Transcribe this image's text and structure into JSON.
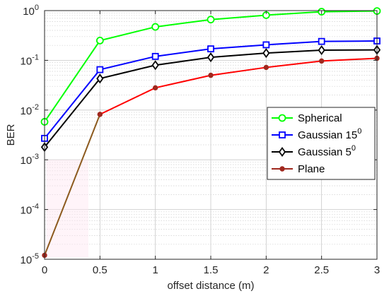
{
  "chart_data": {
    "type": "line",
    "xlabel": "offset distance (m)",
    "ylabel": "BER",
    "x": [
      0,
      0.5,
      1,
      1.5,
      2,
      2.5,
      3
    ],
    "xlim": [
      0,
      3
    ],
    "ylim": [
      1e-05,
      1
    ],
    "yscale": "log",
    "grid": true,
    "legend_position": "right",
    "x_ticks": [
      "0",
      "0.5",
      "1",
      "1.5",
      "2",
      "2.5",
      "3"
    ],
    "y_ticks": [
      {
        "base": "10",
        "exp": "-5",
        "value": 1e-05
      },
      {
        "base": "10",
        "exp": "-4",
        "value": 0.0001
      },
      {
        "base": "10",
        "exp": "-3",
        "value": 0.001
      },
      {
        "base": "10",
        "exp": "-2",
        "value": 0.01
      },
      {
        "base": "10",
        "exp": "-1",
        "value": 0.1
      },
      {
        "base": "10",
        "exp": "0",
        "value": 1
      }
    ],
    "series": [
      {
        "name": "Spherical",
        "name_sup": "",
        "color": "#00ff00",
        "marker": "circle",
        "values": [
          0.0058,
          0.25,
          0.47,
          0.66,
          0.81,
          0.95,
          0.98
        ]
      },
      {
        "name": "Gaussian 15",
        "name_sup": "0",
        "color": "#0000ff",
        "marker": "square",
        "values": [
          0.0027,
          0.065,
          0.12,
          0.17,
          0.205,
          0.24,
          0.245
        ]
      },
      {
        "name": "Gaussian 5",
        "name_sup": "0",
        "color": "#000000",
        "marker": "diamond",
        "values": [
          0.0018,
          0.043,
          0.08,
          0.115,
          0.14,
          0.16,
          0.162
        ]
      },
      {
        "name": "Plane",
        "name_sup": "",
        "color": "#ff0000",
        "marker": "dot",
        "values": [
          1.2e-05,
          0.0082,
          0.028,
          0.05,
          0.072,
          0.097,
          0.11
        ]
      }
    ]
  }
}
